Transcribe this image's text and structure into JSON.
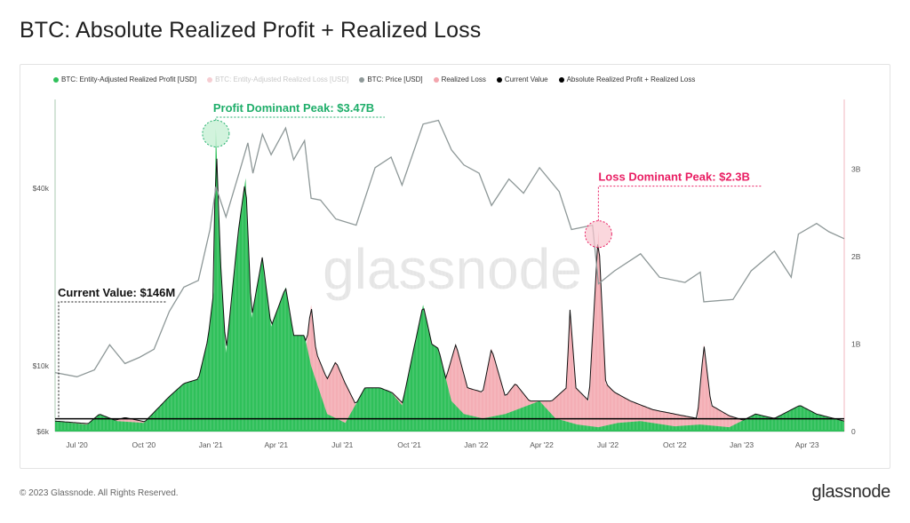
{
  "page": {
    "title": "BTC: Absolute Realized Profit + Realized Loss",
    "copyright": "© 2023 Glassnode. All Rights Reserved.",
    "brand": "glassnode",
    "watermark": "glassnode"
  },
  "legend": [
    {
      "label": "BTC: Entity-Adjusted Realized Profit [USD]",
      "color": "#2fc05a",
      "muted": false
    },
    {
      "label": "BTC: Entity-Adjusted Realized Loss [USD]",
      "color": "#f3a5ad",
      "muted": true
    },
    {
      "label": "BTC: Price [USD]",
      "color": "#8e9898",
      "muted": false
    },
    {
      "label": "Realized Loss",
      "color": "#f3a5ad",
      "muted": false
    },
    {
      "label": "Current Value",
      "color": "#000000",
      "muted": false
    },
    {
      "label": "Absolute Realized Profit + Realized Loss",
      "color": "#000000",
      "muted": false
    }
  ],
  "annotations": {
    "profit_peak": "Profit Dominant Peak: $3.47B",
    "loss_peak": "Loss Dominant Peak: $2.3B",
    "current": "Current Value: $146M"
  },
  "chart_data": {
    "type": "area",
    "x_ticks": [
      "Jul '20",
      "Oct '20",
      "Jan '21",
      "Apr '21",
      "Jul '21",
      "Oct '21",
      "Jan '22",
      "Apr '22",
      "Jul '22",
      "Oct '22",
      "Jan '23",
      "Apr '23"
    ],
    "y_left_ticks": [
      "$40k",
      "$10k",
      "$6k"
    ],
    "y_right_ticks": [
      "3B",
      "2B",
      "1B",
      "0"
    ],
    "y_left_scale": "log",
    "y_left_range": [
      6000,
      80000
    ],
    "y_right_range": [
      0,
      3800000000
    ],
    "x_range": [
      "2020-06-01",
      "2023-05-22"
    ],
    "colors": {
      "profit": "#2fc05a",
      "loss": "#f3a5ad",
      "price": "#8e9898",
      "total_line": "#111111",
      "current": "#000000",
      "profit_accent": "#1fae6a",
      "loss_accent": "#e91e63"
    },
    "current_value": 146000000,
    "series": [
      {
        "name": "BTC: Price [USD]",
        "points": [
          [
            "2020-06-01",
            9500
          ],
          [
            "2020-07-01",
            9200
          ],
          [
            "2020-07-25",
            9700
          ],
          [
            "2020-08-15",
            11800
          ],
          [
            "2020-09-05",
            10200
          ],
          [
            "2020-09-25",
            10700
          ],
          [
            "2020-10-15",
            11400
          ],
          [
            "2020-11-05",
            15300
          ],
          [
            "2020-11-25",
            18500
          ],
          [
            "2020-12-15",
            19500
          ],
          [
            "2020-12-31",
            29000
          ],
          [
            "2021-01-08",
            40500
          ],
          [
            "2021-01-22",
            32000
          ],
          [
            "2021-02-10",
            46000
          ],
          [
            "2021-02-21",
            57000
          ],
          [
            "2021-02-28",
            45000
          ],
          [
            "2021-03-13",
            61000
          ],
          [
            "2021-03-25",
            52000
          ],
          [
            "2021-04-14",
            64000
          ],
          [
            "2021-04-25",
            50000
          ],
          [
            "2021-05-10",
            58000
          ],
          [
            "2021-05-19",
            37000
          ],
          [
            "2021-06-01",
            36500
          ],
          [
            "2021-06-22",
            31500
          ],
          [
            "2021-07-20",
            30000
          ],
          [
            "2021-08-15",
            47000
          ],
          [
            "2021-09-06",
            51000
          ],
          [
            "2021-09-21",
            41000
          ],
          [
            "2021-10-20",
            66000
          ],
          [
            "2021-11-10",
            68000
          ],
          [
            "2021-11-28",
            54000
          ],
          [
            "2021-12-15",
            48000
          ],
          [
            "2022-01-05",
            45000
          ],
          [
            "2022-01-22",
            35000
          ],
          [
            "2022-02-15",
            43000
          ],
          [
            "2022-03-07",
            38500
          ],
          [
            "2022-03-29",
            47000
          ],
          [
            "2022-04-25",
            39000
          ],
          [
            "2022-05-12",
            29000
          ],
          [
            "2022-06-10",
            30000
          ],
          [
            "2022-06-18",
            19000
          ],
          [
            "2022-07-10",
            21000
          ],
          [
            "2022-08-15",
            24000
          ],
          [
            "2022-09-10",
            20000
          ],
          [
            "2022-10-15",
            19200
          ],
          [
            "2022-11-05",
            20800
          ],
          [
            "2022-11-10",
            16500
          ],
          [
            "2022-12-20",
            16800
          ],
          [
            "2023-01-14",
            21000
          ],
          [
            "2023-02-15",
            24500
          ],
          [
            "2023-03-10",
            20000
          ],
          [
            "2023-03-20",
            28000
          ],
          [
            "2023-04-14",
            30400
          ],
          [
            "2023-05-01",
            28500
          ],
          [
            "2023-05-22",
            27000
          ]
        ]
      },
      {
        "name": "Realized Loss",
        "points": [
          [
            "2020-06-01",
            120000000.0
          ],
          [
            "2020-08-01",
            80000000.0
          ],
          [
            "2020-09-05",
            160000000.0
          ],
          [
            "2020-11-01",
            60000000.0
          ],
          [
            "2021-01-12",
            200000000.0
          ],
          [
            "2021-02-23",
            250000000.0
          ],
          [
            "2021-04-18",
            350000000.0
          ],
          [
            "2021-05-05",
            450000000.0
          ],
          [
            "2021-05-19",
            1450000000.0
          ],
          [
            "2021-05-26",
            900000000.0
          ],
          [
            "2021-06-10",
            600000000.0
          ],
          [
            "2021-06-22",
            800000000.0
          ],
          [
            "2021-07-05",
            550000000.0
          ],
          [
            "2021-07-20",
            300000000.0
          ],
          [
            "2021-08-10",
            250000000.0
          ],
          [
            "2021-09-07",
            450000000.0
          ],
          [
            "2021-10-01",
            250000000.0
          ],
          [
            "2021-11-20",
            600000000.0
          ],
          [
            "2021-12-04",
            1000000000.0
          ],
          [
            "2021-12-20",
            500000000.0
          ],
          [
            "2022-01-10",
            450000000.0
          ],
          [
            "2022-01-22",
            950000000.0
          ],
          [
            "2022-02-10",
            400000000.0
          ],
          [
            "2022-02-24",
            550000000.0
          ],
          [
            "2022-03-15",
            350000000.0
          ],
          [
            "2022-04-15",
            350000000.0
          ],
          [
            "2022-05-05",
            500000000.0
          ],
          [
            "2022-05-10",
            1400000000.0
          ],
          [
            "2022-05-18",
            500000000.0
          ],
          [
            "2022-06-05",
            350000000.0
          ],
          [
            "2022-06-18",
            2300000000.0
          ],
          [
            "2022-06-28",
            550000000.0
          ],
          [
            "2022-07-10",
            450000000.0
          ],
          [
            "2022-08-01",
            350000000.0
          ],
          [
            "2022-09-01",
            250000000.0
          ],
          [
            "2022-10-01",
            200000000.0
          ],
          [
            "2022-11-01",
            150000000.0
          ],
          [
            "2022-11-10",
            1000000000.0
          ],
          [
            "2022-11-20",
            300000000.0
          ],
          [
            "2022-12-15",
            180000000.0
          ],
          [
            "2023-01-15",
            100000000.0
          ],
          [
            "2023-02-15",
            80000000.0
          ],
          [
            "2023-03-10",
            250000000.0
          ],
          [
            "2023-04-01",
            100000000.0
          ],
          [
            "2023-05-22",
            100000000.0
          ]
        ]
      },
      {
        "name": "BTC: Entity-Adjusted Realized Profit [USD]",
        "points": [
          [
            "2020-06-01",
            120000000.0
          ],
          [
            "2020-07-15",
            80000000.0
          ],
          [
            "2020-08-01",
            200000000.0
          ],
          [
            "2020-08-25",
            120000000.0
          ],
          [
            "2020-10-01",
            100000000.0
          ],
          [
            "2020-11-05",
            400000000.0
          ],
          [
            "2020-11-25",
            550000000.0
          ],
          [
            "2020-12-15",
            600000000.0
          ],
          [
            "2020-12-28",
            1050000000.0
          ],
          [
            "2021-01-05",
            1600000000.0
          ],
          [
            "2021-01-08",
            3470000000.0
          ],
          [
            "2021-01-14",
            2000000000.0
          ],
          [
            "2021-01-22",
            900000000.0
          ],
          [
            "2021-02-08",
            2300000000.0
          ],
          [
            "2021-02-18",
            2900000000.0
          ],
          [
            "2021-02-26",
            1300000000.0
          ],
          [
            "2021-03-13",
            2000000000.0
          ],
          [
            "2021-03-25",
            1200000000.0
          ],
          [
            "2021-04-14",
            1650000000.0
          ],
          [
            "2021-04-25",
            1100000000.0
          ],
          [
            "2021-05-10",
            1100000000.0
          ],
          [
            "2021-05-19",
            750000000.0
          ],
          [
            "2021-06-10",
            200000000.0
          ],
          [
            "2021-07-05",
            100000000.0
          ],
          [
            "2021-08-01",
            500000000.0
          ],
          [
            "2021-08-22",
            500000000.0
          ],
          [
            "2021-09-06",
            450000000.0
          ],
          [
            "2021-09-21",
            300000000.0
          ],
          [
            "2021-10-06",
            900000000.0
          ],
          [
            "2021-10-20",
            1450000000.0
          ],
          [
            "2021-11-01",
            1000000000.0
          ],
          [
            "2021-11-10",
            950000000.0
          ],
          [
            "2021-11-28",
            350000000.0
          ],
          [
            "2021-12-15",
            200000000.0
          ],
          [
            "2022-01-10",
            150000000.0
          ],
          [
            "2022-02-10",
            200000000.0
          ],
          [
            "2022-03-29",
            350000000.0
          ],
          [
            "2022-04-20",
            150000000.0
          ],
          [
            "2022-05-20",
            80000000.0
          ],
          [
            "2022-06-18",
            50000000.0
          ],
          [
            "2022-07-15",
            100000000.0
          ],
          [
            "2022-08-15",
            120000000.0
          ],
          [
            "2022-10-01",
            60000000.0
          ],
          [
            "2022-11-05",
            80000000.0
          ],
          [
            "2022-12-15",
            50000000.0
          ],
          [
            "2023-01-20",
            200000000.0
          ],
          [
            "2023-02-15",
            150000000.0
          ],
          [
            "2023-03-22",
            300000000.0
          ],
          [
            "2023-04-14",
            200000000.0
          ],
          [
            "2023-05-22",
            120000000.0
          ]
        ]
      }
    ]
  }
}
